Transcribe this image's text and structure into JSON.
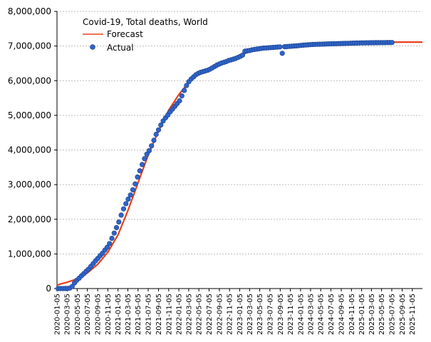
{
  "chart_data": {
    "type": "line",
    "title": "Covid-19, Total deaths, World",
    "xlabel": "",
    "ylabel": "",
    "x_range": [
      "2020-01-05",
      "2026-01-05"
    ],
    "ylim": [
      0,
      8000000
    ],
    "y_ticks": [
      0,
      1000000,
      2000000,
      3000000,
      4000000,
      5000000,
      6000000,
      7000000,
      8000000
    ],
    "y_tick_labels": [
      "0",
      "1,000,000",
      "2,000,000",
      "3,000,000",
      "4,000,000",
      "5,000,000",
      "6,000,000",
      "7,000,000",
      "8,000,000"
    ],
    "x_tick_labels": [
      "2020-01-05",
      "2020-03-05",
      "2020-05-05",
      "2020-07-05",
      "2020-09-05",
      "2020-11-05",
      "2021-01-05",
      "2021-03-05",
      "2021-05-05",
      "2021-07-05",
      "2021-09-05",
      "2021-11-05",
      "2022-01-05",
      "2022-03-05",
      "2022-05-05",
      "2022-07-05",
      "2022-09-05",
      "2022-11-05",
      "2023-01-05",
      "2023-03-05",
      "2023-05-05",
      "2023-07-05",
      "2023-09-05",
      "2023-11-05",
      "2024-01-05",
      "2024-03-05",
      "2024-05-05",
      "2024-07-05",
      "2024-09-05",
      "2024-11-05",
      "2025-01-05",
      "2025-03-05",
      "2025-05-05",
      "2025-07-05",
      "2025-09-05",
      "2025-11-05"
    ],
    "grid": true,
    "legend_placement": "top-left",
    "series": [
      {
        "name": "Forecast",
        "style": "line",
        "color": "#e8401c",
        "points": [
          [
            "2020-01-05",
            100000
          ],
          [
            "2020-03-05",
            180000
          ],
          [
            "2020-05-05",
            280000
          ],
          [
            "2020-07-05",
            450000
          ],
          [
            "2020-09-05",
            700000
          ],
          [
            "2020-11-05",
            1050000
          ],
          [
            "2021-01-05",
            1550000
          ],
          [
            "2021-03-05",
            2250000
          ],
          [
            "2021-05-05",
            3050000
          ],
          [
            "2021-07-05",
            3850000
          ],
          [
            "2021-09-05",
            4550000
          ],
          [
            "2021-11-05",
            5150000
          ],
          [
            "2022-01-05",
            5600000
          ],
          [
            "2022-03-05",
            5950000
          ],
          [
            "2022-05-05",
            6200000
          ],
          [
            "2022-07-05",
            6350000
          ],
          [
            "2022-09-05",
            6480000
          ],
          [
            "2022-11-05",
            6600000
          ],
          [
            "2023-01-05",
            6720000
          ],
          [
            "2023-03-05",
            6840000
          ],
          [
            "2023-05-05",
            6900000
          ],
          [
            "2023-07-05",
            6950000
          ],
          [
            "2023-09-05",
            6990000
          ],
          [
            "2023-11-05",
            7020000
          ],
          [
            "2024-01-05",
            7050000
          ],
          [
            "2024-03-05",
            7070000
          ],
          [
            "2024-05-05",
            7085000
          ],
          [
            "2024-07-05",
            7095000
          ],
          [
            "2024-09-05",
            7100000
          ],
          [
            "2024-11-05",
            7105000
          ],
          [
            "2025-01-05",
            7108000
          ],
          [
            "2025-03-05",
            7110000
          ],
          [
            "2025-05-05",
            7112000
          ],
          [
            "2025-07-05",
            7113000
          ],
          [
            "2025-09-05",
            7113000
          ],
          [
            "2025-11-05",
            7114000
          ],
          [
            "2026-01-05",
            7114000
          ]
        ]
      },
      {
        "name": "Actual",
        "style": "scatter",
        "color": "#2e64c8",
        "points": [
          [
            "2020-01-12",
            0
          ],
          [
            "2020-01-26",
            0
          ],
          [
            "2020-02-09",
            1000
          ],
          [
            "2020-02-23",
            2500
          ],
          [
            "2020-03-08",
            5000
          ],
          [
            "2020-03-22",
            15000
          ],
          [
            "2020-04-05",
            60000
          ],
          [
            "2020-04-19",
            160000
          ],
          [
            "2020-05-03",
            240000
          ],
          [
            "2020-05-17",
            300000
          ],
          [
            "2020-05-31",
            370000
          ],
          [
            "2020-06-14",
            430000
          ],
          [
            "2020-06-28",
            500000
          ],
          [
            "2020-07-12",
            560000
          ],
          [
            "2020-07-26",
            640000
          ],
          [
            "2020-08-09",
            720000
          ],
          [
            "2020-08-23",
            800000
          ],
          [
            "2020-09-06",
            870000
          ],
          [
            "2020-09-20",
            950000
          ],
          [
            "2020-10-04",
            1020000
          ],
          [
            "2020-10-18",
            1110000
          ],
          [
            "2020-11-01",
            1190000
          ],
          [
            "2020-11-15",
            1300000
          ],
          [
            "2020-11-29",
            1450000
          ],
          [
            "2020-12-13",
            1600000
          ],
          [
            "2020-12-27",
            1760000
          ],
          [
            "2021-01-10",
            1920000
          ],
          [
            "2021-01-24",
            2120000
          ],
          [
            "2021-02-07",
            2300000
          ],
          [
            "2021-02-21",
            2450000
          ],
          [
            "2021-03-07",
            2580000
          ],
          [
            "2021-03-21",
            2700000
          ],
          [
            "2021-04-04",
            2850000
          ],
          [
            "2021-04-18",
            3020000
          ],
          [
            "2021-05-02",
            3220000
          ],
          [
            "2021-05-16",
            3400000
          ],
          [
            "2021-05-30",
            3580000
          ],
          [
            "2021-06-13",
            3750000
          ],
          [
            "2021-06-27",
            3880000
          ],
          [
            "2021-07-11",
            3980000
          ],
          [
            "2021-07-25",
            4120000
          ],
          [
            "2021-08-08",
            4280000
          ],
          [
            "2021-08-22",
            4450000
          ],
          [
            "2021-09-05",
            4580000
          ],
          [
            "2021-09-19",
            4720000
          ],
          [
            "2021-10-03",
            4840000
          ],
          [
            "2021-10-17",
            4930000
          ],
          [
            "2021-10-31",
            5010000
          ],
          [
            "2021-11-14",
            5100000
          ],
          [
            "2021-11-28",
            5180000
          ],
          [
            "2021-12-12",
            5260000
          ],
          [
            "2021-12-26",
            5340000
          ],
          [
            "2022-01-09",
            5420000
          ],
          [
            "2022-01-23",
            5560000
          ],
          [
            "2022-02-06",
            5720000
          ],
          [
            "2022-02-20",
            5860000
          ],
          [
            "2022-03-06",
            5970000
          ],
          [
            "2022-03-20",
            6050000
          ],
          [
            "2022-04-03",
            6110000
          ],
          [
            "2022-04-17",
            6170000
          ],
          [
            "2022-05-01",
            6210000
          ],
          [
            "2022-05-15",
            6240000
          ],
          [
            "2022-05-29",
            6260000
          ],
          [
            "2022-06-12",
            6280000
          ],
          [
            "2022-06-26",
            6300000
          ],
          [
            "2022-07-10",
            6330000
          ],
          [
            "2022-07-24",
            6370000
          ],
          [
            "2022-08-07",
            6410000
          ],
          [
            "2022-08-21",
            6450000
          ],
          [
            "2022-09-04",
            6480000
          ],
          [
            "2022-09-18",
            6510000
          ],
          [
            "2022-10-02",
            6530000
          ],
          [
            "2022-10-16",
            6550000
          ],
          [
            "2022-10-30",
            6580000
          ],
          [
            "2022-11-13",
            6600000
          ],
          [
            "2022-11-27",
            6620000
          ],
          [
            "2022-12-11",
            6640000
          ],
          [
            "2022-12-25",
            6670000
          ],
          [
            "2023-01-08",
            6700000
          ],
          [
            "2023-01-22",
            6740000
          ],
          [
            "2023-02-05",
            6850000
          ],
          [
            "2023-02-19",
            6860000
          ],
          [
            "2023-03-05",
            6870000
          ],
          [
            "2023-03-19",
            6890000
          ],
          [
            "2023-04-02",
            6900000
          ],
          [
            "2023-04-16",
            6910000
          ],
          [
            "2023-04-30",
            6920000
          ],
          [
            "2023-05-14",
            6930000
          ],
          [
            "2023-05-28",
            6940000
          ],
          [
            "2023-06-11",
            6945000
          ],
          [
            "2023-06-25",
            6950000
          ],
          [
            "2023-07-09",
            6955000
          ],
          [
            "2023-07-23",
            6960000
          ],
          [
            "2023-08-06",
            6965000
          ],
          [
            "2023-08-20",
            6970000
          ],
          [
            "2023-09-03",
            6975000
          ],
          [
            "2023-09-17",
            6790000
          ],
          [
            "2023-10-01",
            6980000
          ],
          [
            "2023-10-15",
            6985000
          ],
          [
            "2023-10-29",
            6990000
          ],
          [
            "2023-11-12",
            6995000
          ],
          [
            "2023-11-26",
            7000000
          ],
          [
            "2023-12-10",
            7005000
          ],
          [
            "2023-12-24",
            7010000
          ],
          [
            "2024-01-07",
            7020000
          ],
          [
            "2024-01-21",
            7025000
          ],
          [
            "2024-02-04",
            7030000
          ],
          [
            "2024-02-18",
            7035000
          ],
          [
            "2024-03-03",
            7040000
          ],
          [
            "2024-03-17",
            7045000
          ],
          [
            "2024-03-31",
            7048000
          ],
          [
            "2024-04-14",
            7050000
          ],
          [
            "2024-04-28",
            7052000
          ],
          [
            "2024-05-12",
            7055000
          ],
          [
            "2024-05-26",
            7057000
          ],
          [
            "2024-06-09",
            7060000
          ],
          [
            "2024-06-23",
            7062000
          ],
          [
            "2024-07-07",
            7064000
          ],
          [
            "2024-07-21",
            7066000
          ],
          [
            "2024-08-04",
            7068000
          ],
          [
            "2024-08-18",
            7070000
          ],
          [
            "2024-09-01",
            7072000
          ],
          [
            "2024-09-15",
            7074000
          ],
          [
            "2024-09-29",
            7076000
          ],
          [
            "2024-10-13",
            7078000
          ],
          [
            "2024-10-27",
            7080000
          ],
          [
            "2024-11-10",
            7082000
          ],
          [
            "2024-11-24",
            7084000
          ],
          [
            "2024-12-08",
            7086000
          ],
          [
            "2024-12-22",
            7088000
          ],
          [
            "2025-01-05",
            7090000
          ],
          [
            "2025-01-19",
            7092000
          ],
          [
            "2025-02-02",
            7093000
          ],
          [
            "2025-02-16",
            7094000
          ],
          [
            "2025-03-02",
            7095000
          ],
          [
            "2025-03-16",
            7096000
          ],
          [
            "2025-03-30",
            7097000
          ],
          [
            "2025-04-13",
            7098000
          ],
          [
            "2025-04-27",
            7099000
          ],
          [
            "2025-05-11",
            7100000
          ],
          [
            "2025-05-25",
            7100000
          ],
          [
            "2025-06-08",
            7101000
          ],
          [
            "2025-06-22",
            7101000
          ],
          [
            "2025-07-06",
            7102000
          ]
        ]
      }
    ]
  }
}
